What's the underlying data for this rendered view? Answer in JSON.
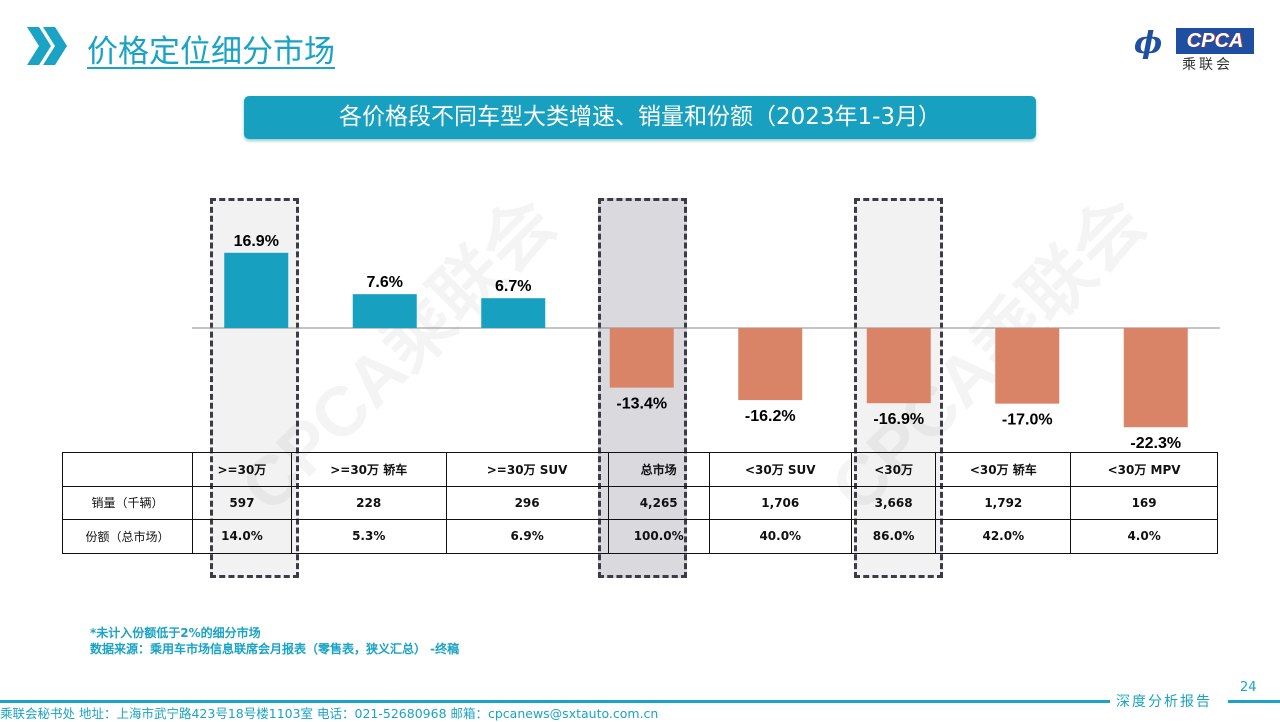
{
  "header": {
    "title": "价格定位细分市场",
    "logo_text": "CPCA",
    "logo_cn": "乘联会",
    "logo_mark": "CADA"
  },
  "banner": "各价格段不同车型大类增速、销量和份额（2023年1-3月）",
  "watermark": "CPCA乘联会",
  "colors": {
    "positive": "#17a0bf",
    "negative": "#d98467",
    "accent": "#1aa3c4",
    "highlight_light": "#f2f2f2",
    "highlight_dark": "#d9d9de"
  },
  "chart_data": {
    "type": "bar",
    "categories": [
      ">=30万",
      ">=30万 轿车",
      ">=30万 SUV",
      "总市场",
      "<30万 SUV",
      "<30万",
      "<30万 轿车",
      "<30万 MPV"
    ],
    "values": [
      16.9,
      7.6,
      6.7,
      -13.4,
      -16.2,
      -16.9,
      -17.0,
      -22.3
    ],
    "labels": [
      "16.9%",
      "7.6%",
      "6.7%",
      "-13.4%",
      "-16.2%",
      "-16.9%",
      "-17.0%",
      "-22.3%"
    ],
    "unit": "%",
    "highlighted": [
      ">=30万",
      "总市场",
      "<30万"
    ]
  },
  "table": {
    "headers": [
      "",
      ">=30万",
      ">=30万 轿车",
      ">=30万 SUV",
      "总市场",
      "<30万 SUV",
      "<30万",
      "<30万 轿车",
      "<30万 MPV"
    ],
    "rows": [
      {
        "label": "销量（千辆）",
        "cells": [
          "597",
          "228",
          "296",
          "4,265",
          "1,706",
          "3,668",
          "1,792",
          "169"
        ]
      },
      {
        "label": "份额（总市场）",
        "cells": [
          "14.0%",
          "5.3%",
          "6.9%",
          "100.0%",
          "40.0%",
          "86.0%",
          "42.0%",
          "4.0%"
        ]
      }
    ]
  },
  "notes": [
    "*未计入份额低于2%的细分市场",
    "数据来源：乘用车市场信息联席会月报表（零售表，狭义汇总） -终稿"
  ],
  "footer": {
    "address": "乘联会秘书处   地址：上海市武宁路423号18号楼1103室  电话：021-52680968   邮箱：cpcanews@sxtauto.com.cn",
    "report": "深度分析报告",
    "page": "24"
  }
}
